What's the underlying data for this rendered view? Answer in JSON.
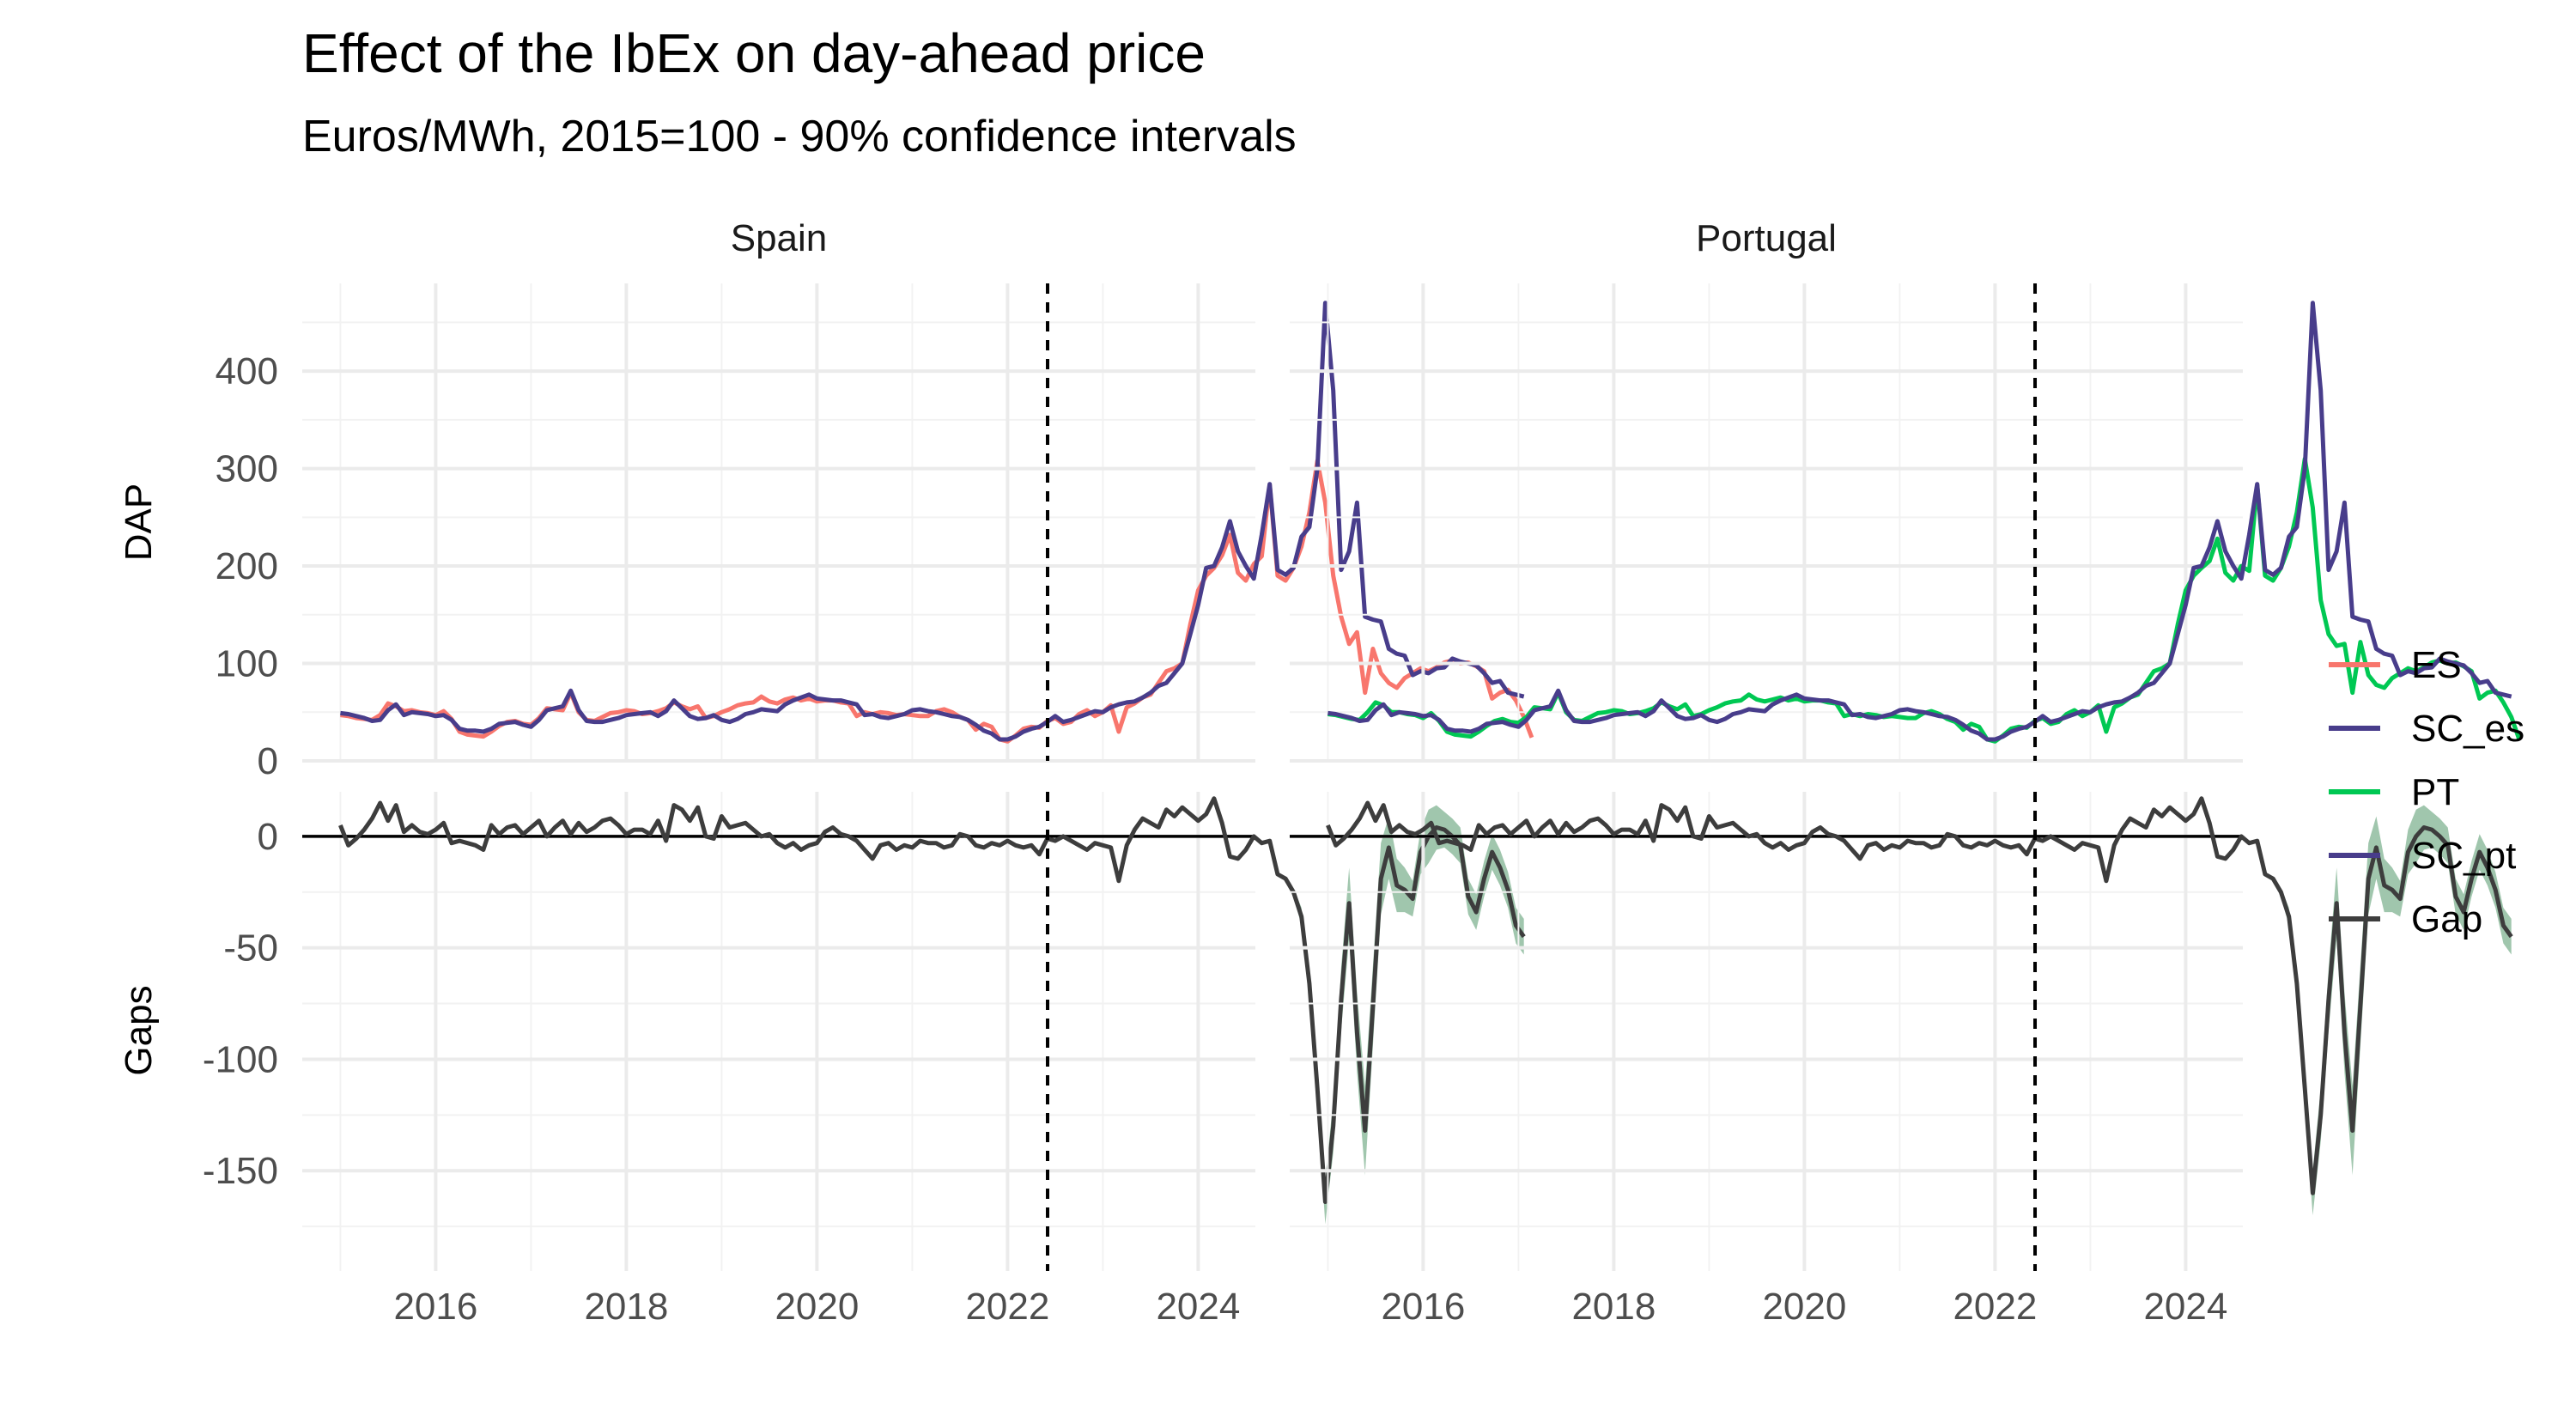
{
  "chart_data": {
    "type": "line",
    "title": "Effect of the IbEx on day-ahead price",
    "subtitle": "Euros/MWh, 2015=100 - 90% confidence intervals",
    "facets": [
      "Spain",
      "Portugal"
    ],
    "rows": [
      {
        "label": "DAP",
        "ylim": [
          0,
          490
        ],
        "ticks": [
          0,
          100,
          200,
          300,
          400
        ]
      },
      {
        "label": "Gaps",
        "ylim": [
          -195,
          20
        ],
        "ticks": [
          0,
          -50,
          -100,
          -150
        ]
      }
    ],
    "x_ticks": [
      2016,
      2018,
      2020,
      2022,
      2024
    ],
    "xlim": [
      2014.6,
      2024.6
    ],
    "intervention_x": 2022.42,
    "x_start": 2015.0,
    "x_step_months": 1,
    "legend": {
      "position": "right",
      "entries": [
        {
          "name": "ES",
          "color": "#F8766D"
        },
        {
          "name": "SC_es",
          "color": "#483D8B"
        },
        {
          "name": "PT",
          "color": "#00C853"
        },
        {
          "name": "SC_pt",
          "color": "#483D8B"
        },
        {
          "name": "Gap",
          "color": "#3d3d3d"
        }
      ]
    },
    "ci_color": "#8FBC9F",
    "sc": [
      49,
      48,
      46,
      44,
      41,
      42,
      52,
      58,
      47,
      50,
      49,
      48,
      46,
      47,
      42,
      33,
      31,
      31,
      30,
      33,
      38,
      39,
      40,
      37,
      35,
      42,
      52,
      54,
      56,
      72,
      52,
      41,
      40,
      40,
      42,
      44,
      47,
      48,
      49,
      50,
      46,
      51,
      62,
      54,
      46,
      43,
      44,
      47,
      42,
      40,
      43,
      48,
      50,
      53,
      52,
      51,
      58,
      62,
      65,
      68,
      64,
      63,
      62,
      62,
      60,
      58,
      47,
      48,
      45,
      44,
      46,
      48,
      52,
      53,
      51,
      50,
      48,
      46,
      45,
      42,
      37,
      31,
      28,
      22,
      22,
      25,
      30,
      33,
      35,
      40,
      46,
      40,
      42,
      45,
      48,
      51,
      50,
      55,
      58,
      60,
      61,
      65,
      70,
      77,
      80,
      90,
      100,
      130,
      160,
      198,
      200,
      219,
      246,
      215,
      200,
      187,
      232,
      284,
      196,
      191,
      198,
      230,
      240,
      300,
      470,
      380,
      196,
      215,
      265,
      148,
      145,
      143,
      115,
      110,
      108,
      88,
      92,
      90,
      95,
      96,
      105,
      102,
      100,
      98,
      90,
      80,
      82,
      70,
      68,
      66
    ],
    "es": [
      47,
      46,
      44,
      43,
      42,
      47,
      59,
      56,
      51,
      52,
      50,
      49,
      47,
      51,
      43,
      30,
      27,
      26,
      25,
      30,
      36,
      40,
      41,
      38,
      37,
      44,
      54,
      53,
      52,
      70,
      50,
      42,
      41,
      45,
      49,
      50,
      52,
      51,
      48,
      49,
      51,
      54,
      60,
      56,
      53,
      56,
      44,
      46,
      50,
      53,
      57,
      59,
      60,
      66,
      61,
      59,
      63,
      65,
      62,
      64,
      61,
      62,
      62,
      60,
      59,
      46,
      50,
      48,
      50,
      49,
      47,
      48,
      47,
      46,
      46,
      51,
      53,
      50,
      45,
      42,
      32,
      38,
      35,
      22,
      20,
      26,
      33,
      35,
      34,
      41,
      44,
      38,
      40,
      48,
      52,
      46,
      50,
      57,
      30,
      55,
      59,
      65,
      68,
      80,
      92,
      95,
      100,
      140,
      175,
      190,
      198,
      211,
      232,
      193,
      185,
      202,
      210,
      283,
      190,
      185,
      198,
      220,
      255,
      308,
      265,
      190,
      148,
      120,
      132,
      70,
      115,
      90,
      80,
      75,
      85,
      90,
      95,
      92,
      96,
      101,
      103,
      100,
      101,
      97,
      92,
      64,
      70,
      73,
      62,
      45,
      24
    ],
    "pt": [
      48,
      47,
      45,
      43,
      42,
      50,
      60,
      57,
      50,
      50,
      48,
      47,
      44,
      49,
      41,
      30,
      27,
      26,
      25,
      30,
      36,
      41,
      43,
      40,
      39,
      45,
      55,
      54,
      53,
      70,
      50,
      42,
      41,
      45,
      49,
      50,
      52,
      51,
      48,
      49,
      51,
      54,
      60,
      56,
      53,
      58,
      46,
      48,
      52,
      55,
      59,
      61,
      62,
      68,
      63,
      61,
      63,
      65,
      62,
      64,
      61,
      62,
      62,
      60,
      59,
      46,
      48,
      46,
      48,
      47,
      45,
      46,
      45,
      44,
      44,
      49,
      51,
      48,
      43,
      40,
      32,
      38,
      35,
      22,
      20,
      26,
      33,
      35,
      34,
      41,
      44,
      38,
      40,
      48,
      52,
      46,
      50,
      57,
      30,
      55,
      59,
      65,
      68,
      80,
      92,
      95,
      100,
      140,
      175,
      190,
      198,
      205,
      228,
      193,
      185,
      200,
      195,
      283,
      190,
      185,
      198,
      220,
      255,
      310,
      260,
      165,
      130,
      118,
      120,
      70,
      122,
      88,
      78,
      75,
      85,
      90,
      95,
      92,
      96,
      101,
      103,
      100,
      101,
      97,
      92,
      64,
      70,
      72,
      60,
      45,
      22
    ],
    "gap_es": [
      5,
      -4,
      -1,
      3,
      8,
      15,
      7,
      14,
      2,
      5,
      2,
      1,
      3,
      6,
      -3,
      -2,
      -3,
      -4,
      -6,
      5,
      1,
      4,
      5,
      1,
      4,
      7,
      0,
      4,
      7,
      1,
      6,
      2,
      4,
      7,
      8,
      5,
      1,
      3,
      3,
      1,
      7,
      -2,
      14,
      12,
      7,
      13,
      0,
      -1,
      9,
      4,
      5,
      6,
      3,
      0,
      1,
      -3,
      -5,
      -3,
      -6,
      -4,
      -3,
      2,
      4,
      1,
      0,
      -2,
      -6,
      -10,
      -4,
      -3,
      -6,
      -4,
      -5,
      -2,
      -3,
      -3,
      -5,
      -4,
      1,
      0,
      -4,
      -5,
      -3,
      -4,
      -2,
      -4,
      -5,
      -4,
      -8,
      -1,
      -2,
      0,
      -2,
      -4,
      -6,
      -3,
      -4,
      -5,
      -20,
      -4,
      3,
      8,
      6,
      4,
      12,
      9,
      13,
      10,
      7,
      10,
      17,
      6,
      -9,
      -10,
      -6,
      0,
      -3,
      -2,
      -17,
      -19,
      -25,
      -36,
      -66,
      -113,
      -164,
      -130,
      -73,
      -30,
      -88,
      -132,
      -76,
      -19,
      -5,
      -22,
      -24,
      -28,
      -7,
      0,
      4,
      3,
      0,
      -4,
      -27,
      -34,
      -19,
      -7,
      -14,
      -24,
      -40,
      -45
    ],
    "gap_pt": [
      5,
      -4,
      -1,
      3,
      8,
      15,
      7,
      14,
      2,
      5,
      2,
      1,
      3,
      6,
      -3,
      -2,
      -3,
      -4,
      -6,
      5,
      1,
      4,
      5,
      1,
      4,
      7,
      0,
      4,
      7,
      1,
      6,
      2,
      4,
      7,
      8,
      5,
      1,
      3,
      3,
      1,
      7,
      -2,
      14,
      12,
      7,
      13,
      0,
      -1,
      9,
      4,
      5,
      6,
      3,
      0,
      1,
      -3,
      -5,
      -3,
      -6,
      -4,
      -3,
      2,
      4,
      1,
      0,
      -2,
      -6,
      -10,
      -4,
      -3,
      -6,
      -4,
      -5,
      -2,
      -3,
      -3,
      -5,
      -4,
      1,
      0,
      -4,
      -5,
      -3,
      -4,
      -2,
      -4,
      -5,
      -4,
      -8,
      -1,
      -2,
      0,
      -2,
      -4,
      -6,
      -3,
      -4,
      -5,
      -20,
      -4,
      3,
      8,
      6,
      4,
      12,
      9,
      13,
      10,
      7,
      10,
      17,
      6,
      -9,
      -10,
      -6,
      0,
      -3,
      -2,
      -17,
      -19,
      -25,
      -36,
      -66,
      -113,
      -160,
      -125,
      -73,
      -30,
      -88,
      -132,
      -76,
      -19,
      -5,
      -22,
      -24,
      -28,
      -7,
      0,
      4,
      3,
      0,
      -4,
      -27,
      -34,
      -19,
      -7,
      -14,
      -24,
      -40,
      -45
    ],
    "ci_half_width": [
      2,
      4,
      6,
      8,
      10,
      12,
      14,
      16,
      18,
      20,
      18,
      16,
      14,
      12,
      10,
      8,
      10,
      12,
      10,
      8,
      8,
      8,
      8,
      8,
      8,
      8,
      8,
      8,
      8,
      8
    ]
  }
}
